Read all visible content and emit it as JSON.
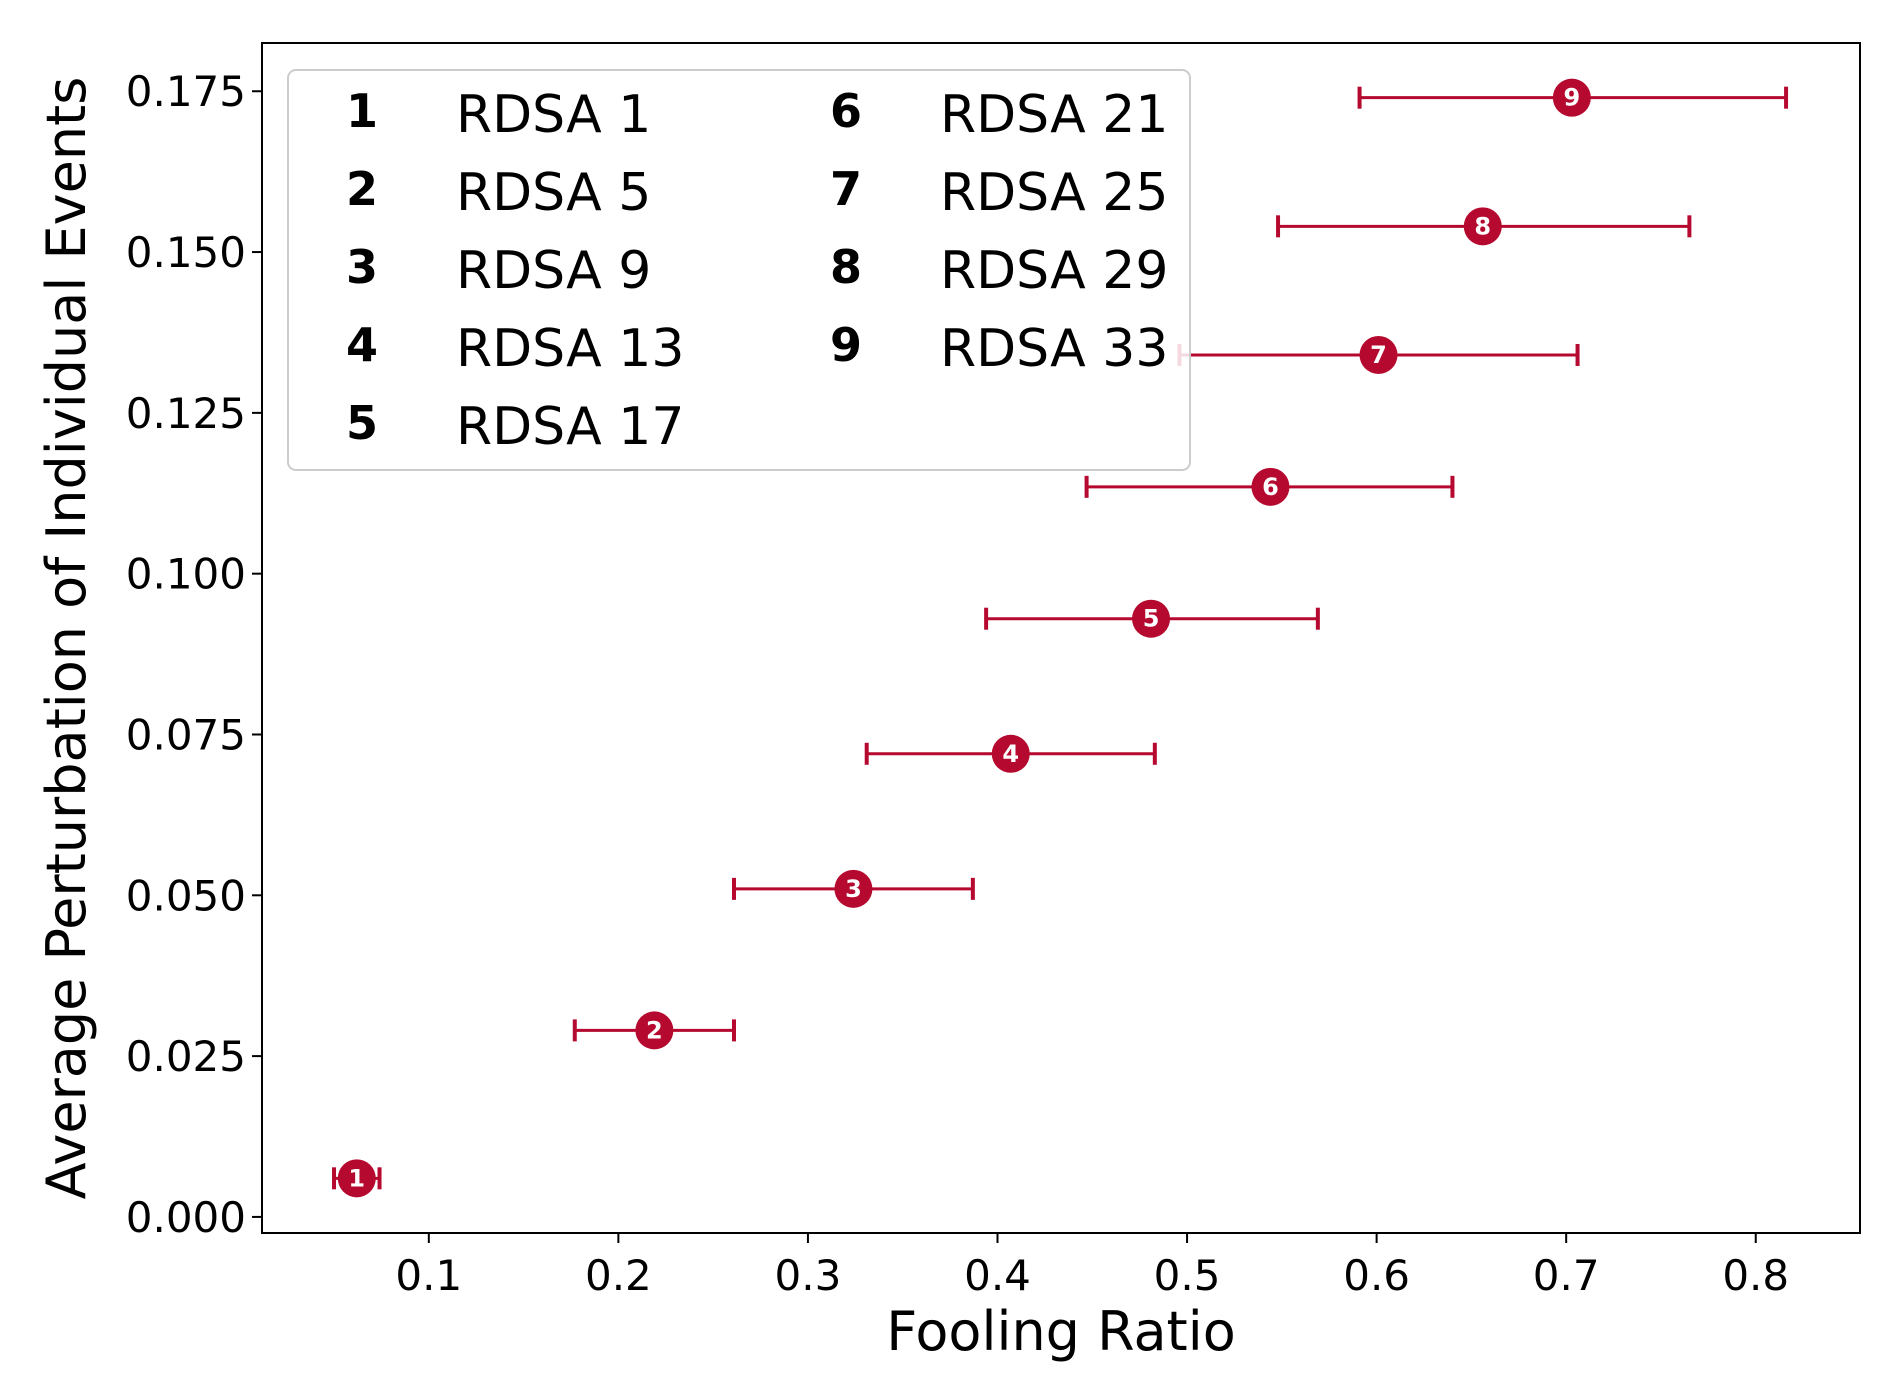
{
  "chart_data": {
    "type": "scatter",
    "xlabel": "Fooling Ratio",
    "ylabel": "Average Perturbation of Individual Events",
    "xlim": [
      0.012,
      0.855
    ],
    "ylim": [
      -0.0025,
      0.1825
    ],
    "x_ticks": [
      "0.1",
      "0.2",
      "0.3",
      "0.4",
      "0.5",
      "0.6",
      "0.7",
      "0.8"
    ],
    "y_ticks": [
      "0.000",
      "0.025",
      "0.050",
      "0.075",
      "0.100",
      "0.125",
      "0.150",
      "0.175"
    ],
    "x_tick_values": [
      0.1,
      0.2,
      0.3,
      0.4,
      0.5,
      0.6,
      0.7,
      0.8
    ],
    "y_tick_values": [
      0.0,
      0.025,
      0.05,
      0.075,
      0.1,
      0.125,
      0.15,
      0.175
    ],
    "color": "#b5092f",
    "legend_position": "top-left",
    "grid": false,
    "points": [
      {
        "marker": "1",
        "name": "RDSA 1",
        "x": 0.062,
        "y": 0.006,
        "xerr_low": 0.05,
        "xerr_high": 0.074
      },
      {
        "marker": "2",
        "name": "RDSA 5",
        "x": 0.219,
        "y": 0.029,
        "xerr_low": 0.177,
        "xerr_high": 0.261
      },
      {
        "marker": "3",
        "name": "RDSA 9",
        "x": 0.324,
        "y": 0.051,
        "xerr_low": 0.261,
        "xerr_high": 0.387
      },
      {
        "marker": "4",
        "name": "RDSA 13",
        "x": 0.407,
        "y": 0.072,
        "xerr_low": 0.331,
        "xerr_high": 0.483
      },
      {
        "marker": "5",
        "name": "RDSA 17",
        "x": 0.481,
        "y": 0.093,
        "xerr_low": 0.394,
        "xerr_high": 0.569
      },
      {
        "marker": "6",
        "name": "RDSA 21",
        "x": 0.544,
        "y": 0.1135,
        "xerr_low": 0.447,
        "xerr_high": 0.64
      },
      {
        "marker": "7",
        "name": "RDSA 25",
        "x": 0.601,
        "y": 0.134,
        "xerr_low": 0.496,
        "xerr_high": 0.706
      },
      {
        "marker": "8",
        "name": "RDSA 29",
        "x": 0.656,
        "y": 0.154,
        "xerr_low": 0.548,
        "xerr_high": 0.765
      },
      {
        "marker": "9",
        "name": "RDSA 33",
        "x": 0.703,
        "y": 0.174,
        "xerr_low": 0.591,
        "xerr_high": 0.816
      }
    ]
  }
}
